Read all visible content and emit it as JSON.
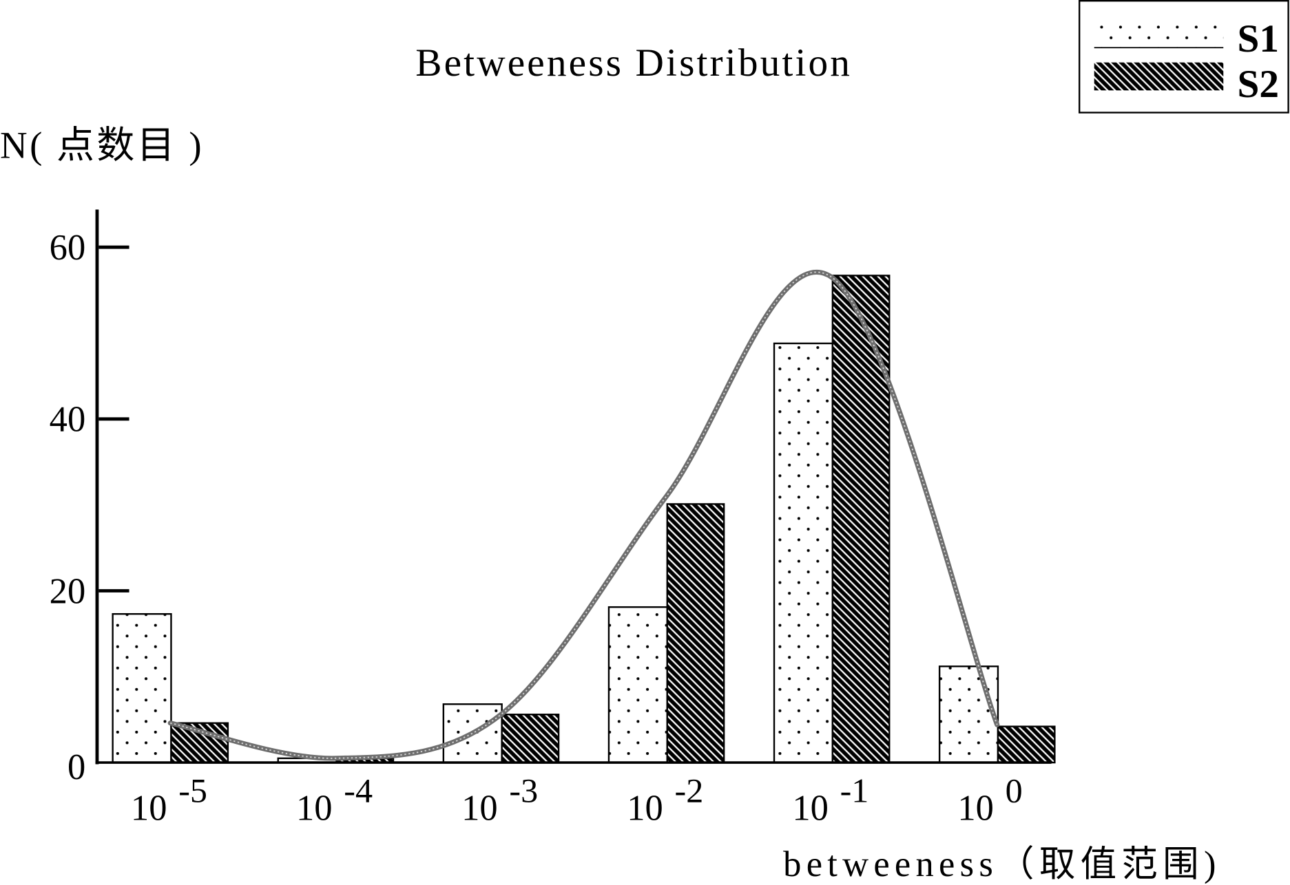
{
  "chart_data": {
    "type": "bar",
    "title": "Betweeness Distribution",
    "ylabel": "N( 点数目 )",
    "xlabel": "betweeness（取值范围)",
    "categories": [
      {
        "base": "10",
        "exp": "-5"
      },
      {
        "base": "10",
        "exp": "-4"
      },
      {
        "base": "10",
        "exp": "-3"
      },
      {
        "base": "10",
        "exp": "-2"
      },
      {
        "base": "10",
        "exp": "-1"
      },
      {
        "base": "10",
        "exp": "0"
      }
    ],
    "yticks": [
      0,
      20,
      40,
      60
    ],
    "ylim": [
      0,
      64
    ],
    "grid": false,
    "legend_position": "top-right",
    "series": [
      {
        "name": "S1",
        "type": "bar",
        "fill": "#ffffff",
        "pattern_color": "#000000",
        "values": [
          17.3,
          0.5,
          6.8,
          18.1,
          48.8,
          11.2
        ]
      },
      {
        "name": "S2",
        "type": "bar",
        "fill": "#000000",
        "pattern_color": "#ffffff",
        "values": [
          4.6,
          0.5,
          5.6,
          30.1,
          56.7,
          4.2
        ]
      },
      {
        "type": "line",
        "color": "#6e6e6e",
        "smooth": true,
        "values": [
          4.6,
          0.5,
          5.6,
          31.0,
          56.5,
          4.4
        ]
      }
    ]
  }
}
